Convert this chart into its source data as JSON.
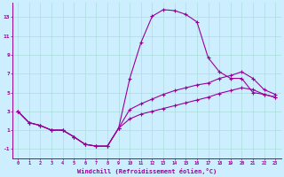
{
  "xlabel": "Windchill (Refroidissement éolien,°C)",
  "background_color": "#cceeff",
  "line_color": "#990099",
  "x_ticks": [
    0,
    1,
    2,
    3,
    4,
    5,
    6,
    7,
    8,
    9,
    10,
    11,
    12,
    13,
    14,
    15,
    16,
    17,
    18,
    19,
    20,
    21,
    22,
    23
  ],
  "ylim": [
    -2.0,
    14.5
  ],
  "xlim": [
    -0.5,
    23.5
  ],
  "yticks": [
    -1,
    1,
    3,
    5,
    7,
    9,
    11,
    13
  ],
  "line1_x": [
    0,
    1,
    2,
    3,
    4,
    5,
    6,
    7,
    8,
    9,
    10,
    11,
    12,
    13,
    14,
    15,
    16,
    17,
    18,
    19,
    20,
    21,
    22,
    23
  ],
  "line1_y": [
    3.0,
    1.8,
    1.5,
    1.0,
    1.0,
    0.3,
    -0.5,
    -0.7,
    -0.7,
    1.2,
    6.5,
    10.3,
    13.1,
    13.8,
    13.7,
    13.3,
    12.5,
    8.7,
    7.2,
    6.5,
    6.5,
    5.0,
    4.8,
    4.5
  ],
  "line2_x": [
    0,
    1,
    2,
    3,
    4,
    5,
    6,
    7,
    8,
    9,
    10,
    11,
    12,
    13,
    14,
    15,
    16,
    17,
    18,
    19,
    20,
    21,
    22,
    23
  ],
  "line2_y": [
    3.0,
    1.8,
    1.5,
    1.0,
    1.0,
    0.3,
    -0.5,
    -0.7,
    -0.7,
    1.2,
    3.2,
    3.8,
    4.3,
    4.8,
    5.2,
    5.5,
    5.8,
    6.0,
    6.5,
    6.8,
    7.2,
    6.5,
    5.3,
    4.8
  ],
  "line3_x": [
    0,
    1,
    2,
    3,
    4,
    5,
    6,
    7,
    8,
    9,
    10,
    11,
    12,
    13,
    14,
    15,
    16,
    17,
    18,
    19,
    20,
    21,
    22,
    23
  ],
  "line3_y": [
    3.0,
    1.8,
    1.5,
    1.0,
    1.0,
    0.3,
    -0.5,
    -0.7,
    -0.7,
    1.2,
    2.2,
    2.7,
    3.0,
    3.3,
    3.6,
    3.9,
    4.2,
    4.5,
    4.9,
    5.2,
    5.5,
    5.3,
    4.8,
    4.5
  ]
}
